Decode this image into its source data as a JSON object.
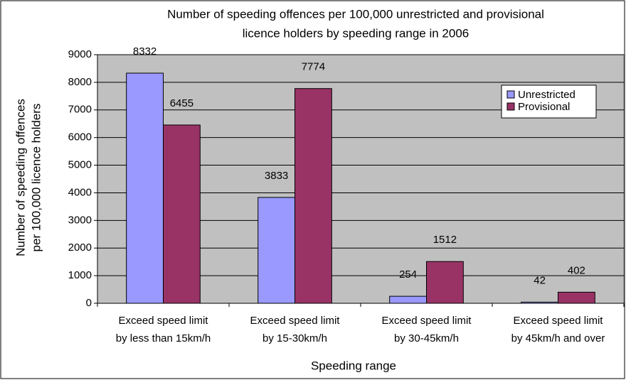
{
  "chart_data": {
    "type": "bar",
    "title": [
      "Number of speeding offences per 100,000 unrestricted and provisional",
      "licence holders by speeding range in 2006"
    ],
    "y_label": [
      "Number of speeding offences",
      "per 100,000 licence holders"
    ],
    "x_label": "Speeding range",
    "categories": [
      [
        "Exceed speed limit",
        "by less than 15km/h"
      ],
      [
        "Exceed speed limit",
        "by 15-30km/h"
      ],
      [
        "Exceed speed limit",
        "by 30-45km/h"
      ],
      [
        "Exceed speed limit",
        "by 45km/h and over"
      ]
    ],
    "series": [
      {
        "name": "Unrestricted",
        "color": "#9999ff",
        "values": [
          8332,
          3833,
          254,
          42
        ]
      },
      {
        "name": "Provisional",
        "color": "#993366",
        "values": [
          6455,
          7774,
          1512,
          402
        ]
      }
    ],
    "ylim": [
      0,
      9000
    ],
    "yticks": [
      0,
      1000,
      2000,
      3000,
      4000,
      5000,
      6000,
      7000,
      8000,
      9000
    ],
    "grid": true,
    "legend": "top-right"
  }
}
